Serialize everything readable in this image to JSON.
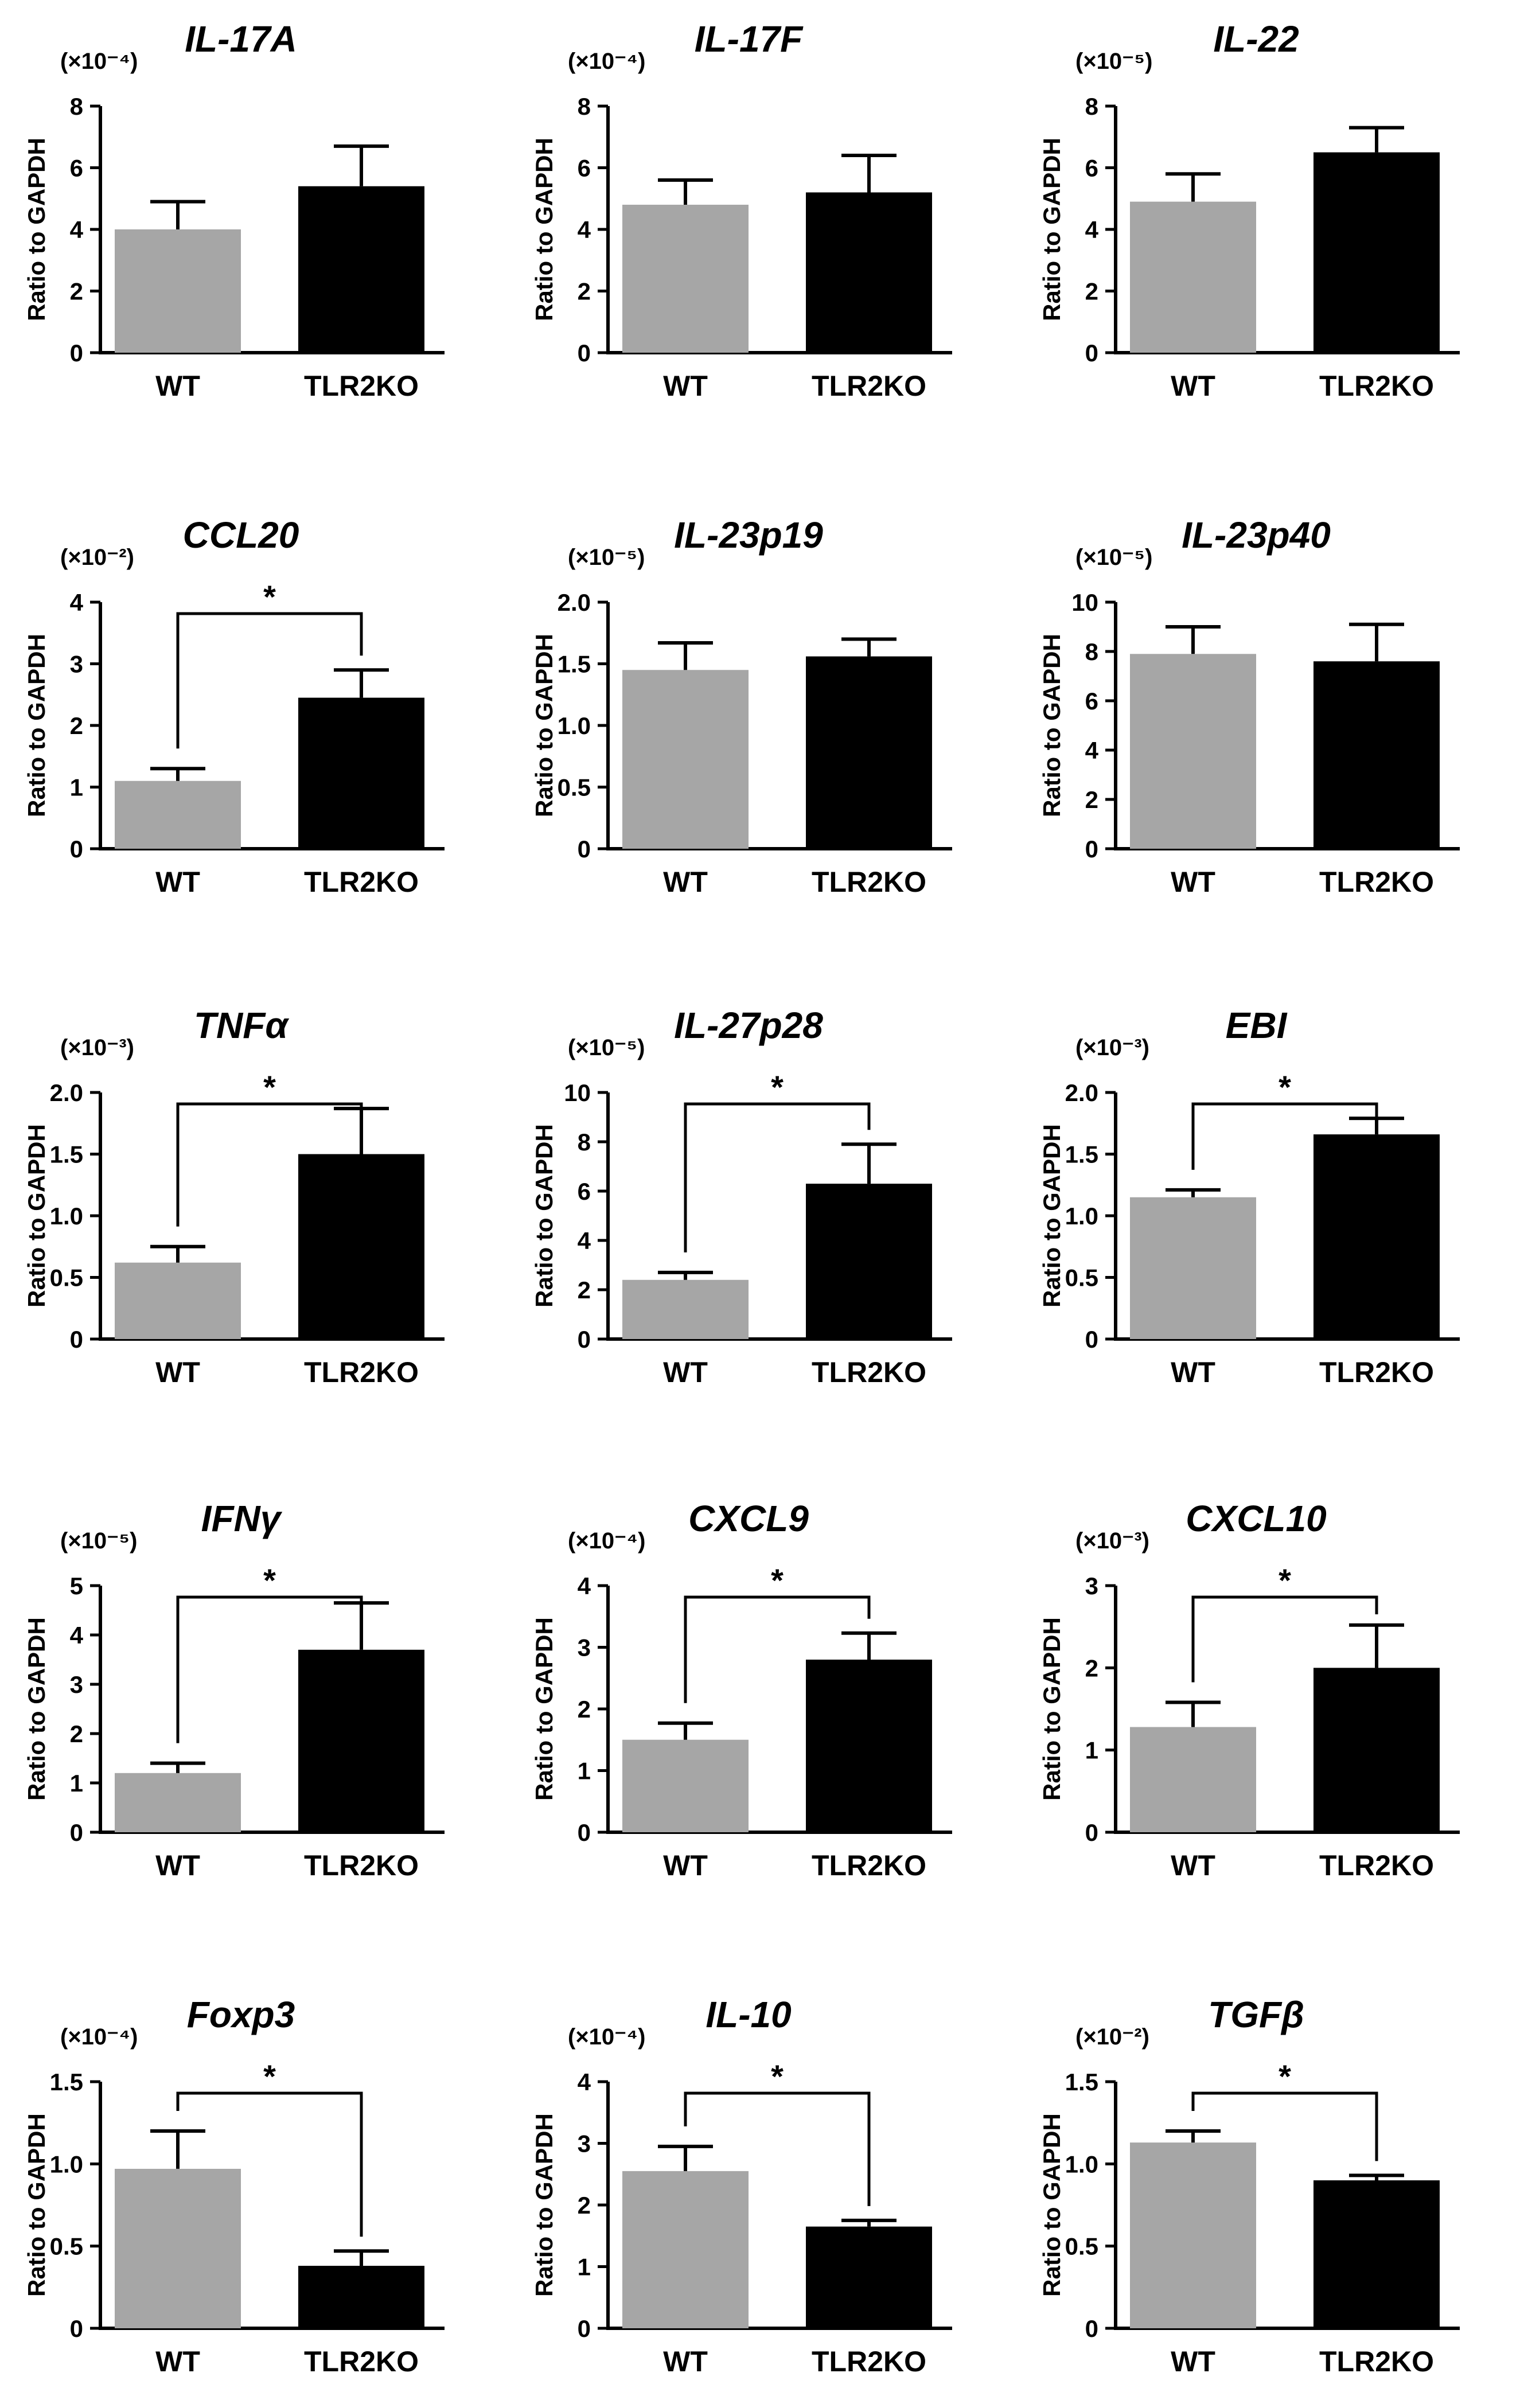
{
  "figure": {
    "groups": [
      "WT",
      "TLR2KO"
    ],
    "colors": {
      "WT": "#a6a6a6",
      "TLR2KO": "#000000",
      "axis": "#000000"
    },
    "ylabel": "Ratio to GAPDH",
    "significance_marker": "*"
  },
  "chart_data": [
    {
      "type": "bar",
      "title": "IL-17A",
      "multiplier": "(×10⁻⁴)",
      "ylabel": "Ratio to GAPDH",
      "ylim": [
        0,
        8
      ],
      "yticks": [
        "0",
        "2",
        "4",
        "6",
        "8"
      ],
      "categories": [
        "WT",
        "TLR2KO"
      ],
      "values": [
        4.0,
        5.4
      ],
      "errors": [
        0.9,
        1.3
      ],
      "significant": false
    },
    {
      "type": "bar",
      "title": "IL-17F",
      "multiplier": "(×10⁻⁴)",
      "ylabel": "Ratio to GAPDH",
      "ylim": [
        0,
        8
      ],
      "yticks": [
        "0",
        "2",
        "4",
        "6",
        "8"
      ],
      "categories": [
        "WT",
        "TLR2KO"
      ],
      "values": [
        4.8,
        5.2
      ],
      "errors": [
        0.8,
        1.2
      ],
      "significant": false
    },
    {
      "type": "bar",
      "title": "IL-22",
      "multiplier": "(×10⁻⁵)",
      "ylabel": "Ratio to GAPDH",
      "ylim": [
        0,
        8
      ],
      "yticks": [
        "0",
        "2",
        "4",
        "6",
        "8"
      ],
      "categories": [
        "WT",
        "TLR2KO"
      ],
      "values": [
        4.9,
        6.5
      ],
      "errors": [
        0.9,
        0.8
      ],
      "significant": false
    },
    {
      "type": "bar",
      "title": "CCL20",
      "multiplier": "(×10⁻²)",
      "ylabel": "Ratio to GAPDH",
      "ylim": [
        0,
        4
      ],
      "yticks": [
        "0",
        "1",
        "2",
        "3",
        "4"
      ],
      "categories": [
        "WT",
        "TLR2KO"
      ],
      "values": [
        1.1,
        2.45
      ],
      "errors": [
        0.2,
        0.45
      ],
      "significant": true
    },
    {
      "type": "bar",
      "title": "IL-23p19",
      "multiplier": "(×10⁻⁵)",
      "ylabel": "Ratio to GAPDH",
      "ylim": [
        0,
        2
      ],
      "yticks": [
        "0",
        "0.5",
        "1.0",
        "1.5",
        "2.0"
      ],
      "categories": [
        "WT",
        "TLR2KO"
      ],
      "values": [
        1.45,
        1.56
      ],
      "errors": [
        0.22,
        0.14
      ],
      "significant": false
    },
    {
      "type": "bar",
      "title": "IL-23p40",
      "multiplier": "(×10⁻⁵)",
      "ylabel": "Ratio to GAPDH",
      "ylim": [
        0,
        10
      ],
      "yticks": [
        "0",
        "2",
        "4",
        "6",
        "8",
        "10"
      ],
      "categories": [
        "WT",
        "TLR2KO"
      ],
      "values": [
        7.9,
        7.6
      ],
      "errors": [
        1.1,
        1.5
      ],
      "significant": false
    },
    {
      "type": "bar",
      "title": "TNFα",
      "multiplier": "(×10⁻³)",
      "ylabel": "Ratio to GAPDH",
      "ylim": [
        0,
        2
      ],
      "yticks": [
        "0",
        "0.5",
        "1.0",
        "1.5",
        "2.0"
      ],
      "categories": [
        "WT",
        "TLR2KO"
      ],
      "values": [
        0.62,
        1.5
      ],
      "errors": [
        0.13,
        0.37
      ],
      "significant": true
    },
    {
      "type": "bar",
      "title": "IL-27p28",
      "multiplier": "(×10⁻⁵)",
      "ylabel": "Ratio to GAPDH",
      "ylim": [
        0,
        10
      ],
      "yticks": [
        "0",
        "2",
        "4",
        "6",
        "8",
        "10"
      ],
      "categories": [
        "WT",
        "TLR2KO"
      ],
      "values": [
        2.4,
        6.3
      ],
      "errors": [
        0.3,
        1.6
      ],
      "significant": true
    },
    {
      "type": "bar",
      "title": "EBI",
      "multiplier": "(×10⁻³)",
      "ylabel": "Ratio to GAPDH",
      "ylim": [
        0,
        2
      ],
      "yticks": [
        "0",
        "0.5",
        "1.0",
        "1.5",
        "2.0"
      ],
      "categories": [
        "WT",
        "TLR2KO"
      ],
      "values": [
        1.15,
        1.66
      ],
      "errors": [
        0.06,
        0.13
      ],
      "significant": true
    },
    {
      "type": "bar",
      "title": "IFNγ",
      "multiplier": "(×10⁻⁵)",
      "ylabel": "Ratio to GAPDH",
      "ylim": [
        0,
        5
      ],
      "yticks": [
        "0",
        "1",
        "2",
        "3",
        "4",
        "5"
      ],
      "categories": [
        "WT",
        "TLR2KO"
      ],
      "values": [
        1.2,
        3.7
      ],
      "errors": [
        0.2,
        0.95
      ],
      "significant": true
    },
    {
      "type": "bar",
      "title": "CXCL9",
      "multiplier": "(×10⁻⁴)",
      "ylabel": "Ratio to GAPDH",
      "ylim": [
        0,
        4
      ],
      "yticks": [
        "0",
        "1",
        "2",
        "3",
        "4"
      ],
      "categories": [
        "WT",
        "TLR2KO"
      ],
      "values": [
        1.5,
        2.8
      ],
      "errors": [
        0.27,
        0.43
      ],
      "significant": true
    },
    {
      "type": "bar",
      "title": "CXCL10",
      "multiplier": "(×10⁻³)",
      "ylabel": "Ratio to GAPDH",
      "ylim": [
        0,
        3
      ],
      "yticks": [
        "0",
        "1",
        "2",
        "3"
      ],
      "categories": [
        "WT",
        "TLR2KO"
      ],
      "values": [
        1.28,
        2.0
      ],
      "errors": [
        0.3,
        0.52
      ],
      "significant": true
    },
    {
      "type": "bar",
      "title": "Foxp3",
      "multiplier": "(×10⁻⁴)",
      "ylabel": "Ratio to GAPDH",
      "ylim": [
        0,
        1.5
      ],
      "yticks": [
        "0",
        "0.5",
        "1.0",
        "1.5"
      ],
      "categories": [
        "WT",
        "TLR2KO"
      ],
      "values": [
        0.97,
        0.38
      ],
      "errors": [
        0.23,
        0.09
      ],
      "significant": true
    },
    {
      "type": "bar",
      "title": "IL-10",
      "multiplier": "(×10⁻⁴)",
      "ylabel": "Ratio to GAPDH",
      "ylim": [
        0,
        4
      ],
      "yticks": [
        "0",
        "1",
        "2",
        "3",
        "4"
      ],
      "categories": [
        "WT",
        "TLR2KO"
      ],
      "values": [
        2.55,
        1.65
      ],
      "errors": [
        0.4,
        0.1
      ],
      "significant": true
    },
    {
      "type": "bar",
      "title": "TGFβ",
      "multiplier": "(×10⁻²)",
      "ylabel": "Ratio to GAPDH",
      "ylim": [
        0,
        1.5
      ],
      "yticks": [
        "0",
        "0.5",
        "1.0",
        "1.5"
      ],
      "categories": [
        "WT",
        "TLR2KO"
      ],
      "values": [
        1.13,
        0.9
      ],
      "errors": [
        0.07,
        0.03
      ],
      "significant": true
    }
  ]
}
